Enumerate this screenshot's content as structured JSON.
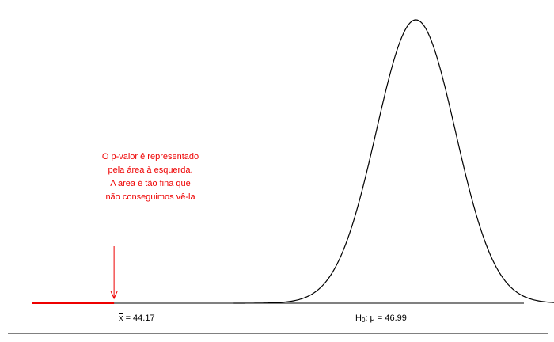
{
  "chart_data": {
    "type": "line",
    "title": "",
    "xlabel": "",
    "ylabel": "",
    "distribution": "normal",
    "mean": 46.99,
    "sd": 0.37,
    "xlim": [
      43.4,
      48.0
    ],
    "sample_mean": 44.17,
    "null_mean": 46.99,
    "tick_labels": {
      "sample_mean": {
        "symbol": "x",
        "eq": "= 44.17"
      },
      "null_mean": {
        "h": "H",
        "sub": "0",
        "rest": ": μ = 46.99"
      }
    },
    "annotation_lines": [
      "O p-valor é representado",
      "pela área à esquerda.",
      "A área é tão fina que",
      "não conseguimos vê-la"
    ],
    "colors": {
      "curve": "#000000",
      "pvalue_region": "#ee0000",
      "annotation": "#ee0000",
      "axis": "#000000"
    },
    "grid": false,
    "legend": "none"
  }
}
